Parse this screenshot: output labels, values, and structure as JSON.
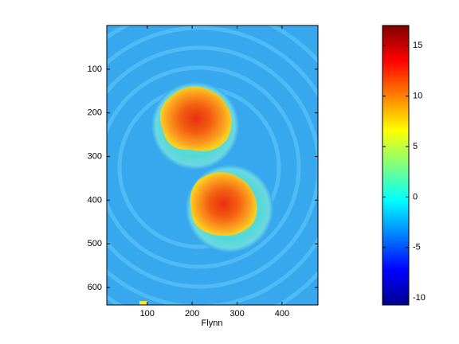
{
  "chart_data": {
    "type": "heatmap",
    "xlabel": "Flynn",
    "xlim": [
      10,
      480
    ],
    "xticks": [
      100,
      200,
      300,
      400
    ],
    "ylim": [
      640,
      0
    ],
    "yticks": [
      100,
      200,
      300,
      400,
      500,
      600
    ],
    "colorbar": {
      "colormap": "jet",
      "clim": [
        -10.7,
        17
      ],
      "ticks": [
        -10,
        -5,
        0,
        5,
        10,
        15
      ]
    }
  }
}
